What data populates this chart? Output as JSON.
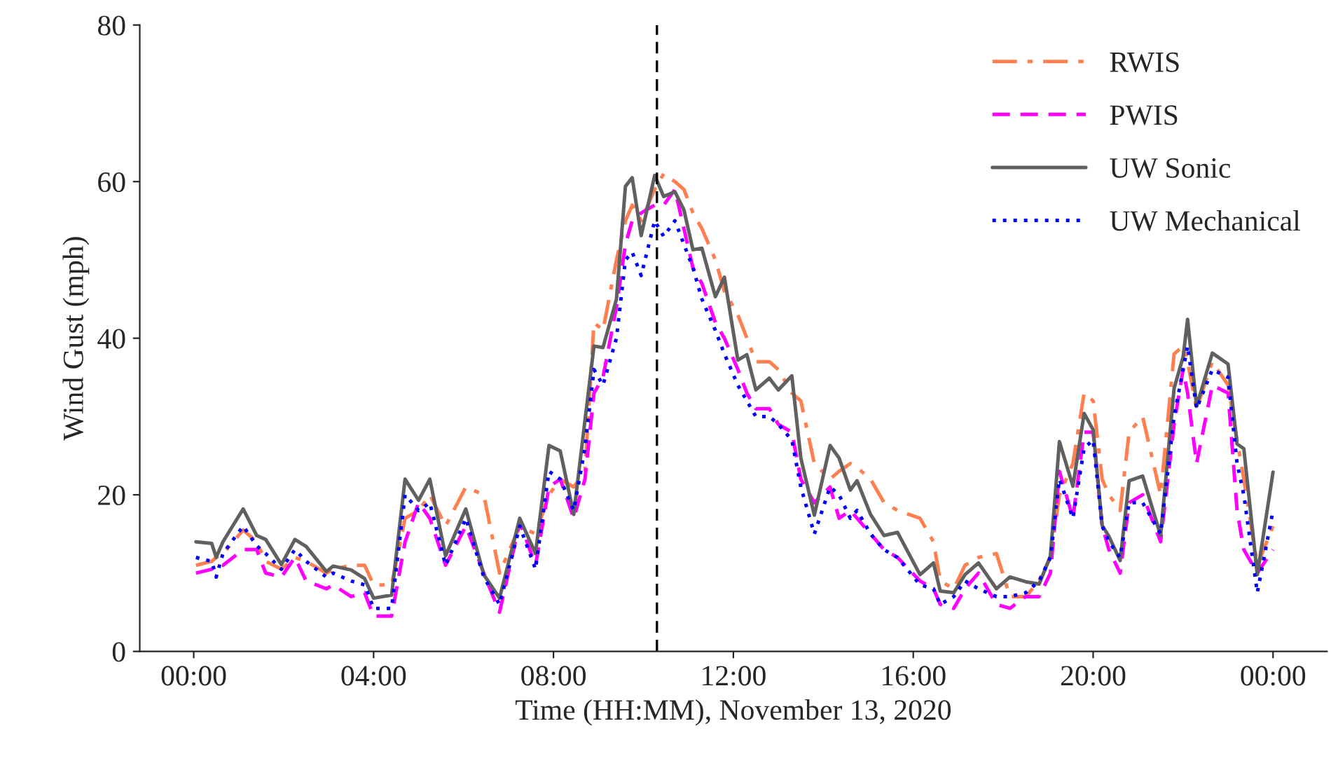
{
  "chart_data": {
    "type": "line",
    "xlabel": "Time (HH:MM), November 13, 2020",
    "ylabel": "Wind Gust (mph)",
    "x": [
      0.05,
      0.4,
      0.5,
      0.65,
      1.1,
      1.4,
      1.6,
      1.95,
      2.25,
      2.5,
      2.95,
      3.1,
      3.5,
      3.8,
      4.0,
      4.4,
      4.7,
      5.0,
      5.25,
      5.6,
      6.05,
      6.45,
      6.8,
      7.25,
      7.6,
      7.9,
      8.15,
      8.45,
      8.7,
      8.9,
      9.1,
      9.4,
      9.6,
      9.75,
      9.95,
      10.25,
      10.45,
      10.7,
      10.9,
      11.1,
      11.3,
      11.6,
      11.8,
      12.1,
      12.3,
      12.5,
      12.8,
      13.0,
      13.3,
      13.5,
      13.8,
      14.15,
      14.35,
      14.6,
      14.75,
      15.05,
      15.35,
      15.65,
      16.15,
      16.45,
      16.6,
      16.9,
      17.15,
      17.45,
      17.85,
      18.15,
      18.5,
      18.8,
      19.05,
      19.25,
      19.55,
      19.8,
      20.0,
      20.2,
      20.35,
      20.6,
      20.8,
      21.1,
      21.5,
      21.8,
      22.0,
      22.1,
      22.3,
      22.65,
      23.0,
      23.2,
      23.35,
      23.65,
      24.0
    ],
    "series": [
      {
        "name": "RWIS",
        "color": "#ff7f50",
        "line_style": "dashdot",
        "values": [
          11,
          11.5,
          12,
          12.5,
          15.5,
          14,
          11.5,
          10.5,
          12,
          11.5,
          10,
          10.5,
          11,
          11,
          8.5,
          8.5,
          17,
          18,
          20,
          16,
          21,
          20,
          10,
          16,
          15,
          20,
          22,
          21,
          23,
          42,
          41,
          50,
          55,
          57,
          55,
          59,
          61,
          60,
          59,
          56,
          54,
          50,
          46,
          43,
          40,
          37,
          37,
          36,
          33,
          32,
          24,
          22,
          23,
          24,
          23.5,
          22,
          19,
          18,
          17,
          14,
          9,
          8,
          11,
          12,
          12.5,
          7,
          7,
          9,
          12,
          20,
          24,
          33,
          32,
          22,
          20,
          18,
          28,
          30,
          20,
          38,
          39,
          37,
          31,
          37,
          34,
          27,
          22,
          11,
          16
        ]
      },
      {
        "name": "PWIS",
        "color": "#ff00ff",
        "line_style": "dashed",
        "values": [
          10,
          10.5,
          11,
          11,
          13,
          13,
          10,
          9.5,
          12,
          9,
          8,
          8.5,
          7,
          7.5,
          4.5,
          4.5,
          14,
          19,
          17,
          11,
          16,
          10,
          5,
          16.5,
          11,
          21,
          22,
          17,
          22,
          33,
          35,
          44,
          52,
          55,
          56,
          57,
          57,
          59,
          54,
          49,
          47,
          42,
          40,
          36,
          33,
          31,
          31,
          29,
          28,
          22,
          19,
          21,
          17,
          18,
          17,
          15,
          13,
          12,
          9,
          8,
          6,
          5.5,
          8,
          10,
          6,
          5.5,
          7,
          7,
          10,
          23,
          17,
          28,
          28,
          16,
          13,
          10,
          19,
          20,
          14,
          29,
          36,
          33,
          24,
          34,
          33,
          18,
          13,
          10,
          13
        ]
      },
      {
        "name": "UW Sonic",
        "color": "#606060",
        "line_style": "solid",
        "values": [
          14,
          13.8,
          12,
          14,
          18.2,
          14.8,
          14.3,
          11.1,
          14.3,
          13.4,
          10.2,
          10.9,
          10.4,
          9.3,
          6.8,
          7.2,
          22,
          19.3,
          22,
          12.2,
          18.2,
          9.8,
          6.8,
          17,
          12.5,
          26.3,
          25.6,
          17.5,
          29.5,
          39,
          38.8,
          45,
          59.4,
          60.5,
          53.1,
          60.8,
          58.1,
          58.7,
          56.4,
          51.3,
          51.5,
          45.3,
          47.8,
          37.2,
          37.9,
          33.4,
          34.9,
          33.4,
          35.2,
          24.7,
          17.4,
          26.3,
          24.7,
          20.6,
          21.8,
          17.5,
          14.8,
          15.2,
          9.8,
          11.3,
          7.7,
          7.5,
          9.8,
          11.3,
          8,
          9.5,
          8.9,
          8.6,
          12.2,
          26.8,
          21.1,
          30.4,
          28.3,
          16.1,
          14.7,
          11.6,
          21.8,
          22.4,
          14.8,
          33.6,
          37.6,
          42.4,
          31.3,
          38.1,
          36.7,
          26.5,
          25.9,
          9.8,
          22.9
        ]
      },
      {
        "name": "UW Mechanical",
        "color": "#0000ff",
        "line_style": "dotted",
        "values": [
          12,
          11.5,
          9.5,
          12.5,
          16,
          13.5,
          12.5,
          10.5,
          13,
          11.5,
          9.5,
          10,
          9,
          8.5,
          5.5,
          5.5,
          20,
          18,
          19,
          11,
          17,
          9.5,
          6,
          16,
          10.5,
          23,
          22,
          18,
          26,
          36,
          34,
          40,
          50,
          51,
          48,
          55,
          53,
          55,
          52,
          49,
          45,
          41,
          38,
          34,
          32,
          30,
          30,
          29,
          27,
          21,
          15,
          21,
          20,
          17,
          18,
          15,
          13,
          12,
          8.5,
          8,
          6,
          7,
          9,
          8,
          7,
          7,
          7.5,
          9,
          12,
          22,
          17,
          26,
          27,
          16,
          14,
          12,
          19,
          19,
          15,
          30,
          36,
          39,
          31,
          36,
          35,
          24,
          20,
          7.5,
          18
        ]
      }
    ],
    "xlim": [
      -1.2,
      25.2
    ],
    "ylim": [
      0,
      80
    ],
    "xticks": [
      {
        "value": 0,
        "label": "00:00"
      },
      {
        "value": 4,
        "label": "04:00"
      },
      {
        "value": 8,
        "label": "08:00"
      },
      {
        "value": 12,
        "label": "12:00"
      },
      {
        "value": 16,
        "label": "16:00"
      },
      {
        "value": 20,
        "label": "20:00"
      },
      {
        "value": 24,
        "label": "00:00"
      }
    ],
    "yticks": [
      0,
      20,
      40,
      60,
      80
    ],
    "ref_lines": [
      {
        "axis": "x",
        "value": 10.3,
        "color": "#000000",
        "line_style": "dashed"
      }
    ],
    "legend": "top right",
    "grid": false
  }
}
